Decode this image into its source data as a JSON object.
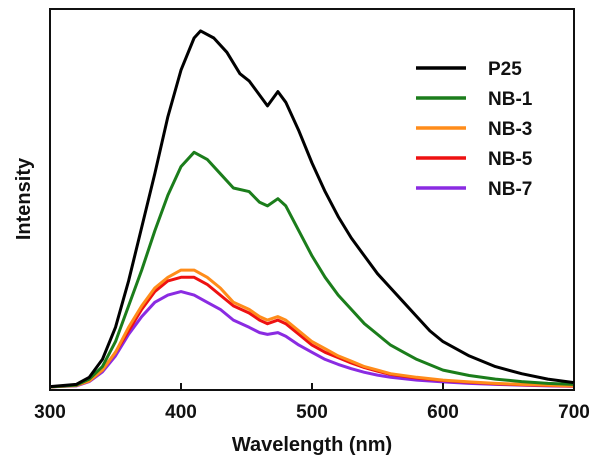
{
  "chart_data": {
    "type": "line",
    "title": "",
    "xlabel": "Wavelength (nm)",
    "ylabel": "Intensity",
    "xlim": [
      300,
      700
    ],
    "ylim": [
      0,
      1.05
    ],
    "xticks": [
      300,
      400,
      500,
      600,
      700
    ],
    "grid": false,
    "legend_position": "top-right",
    "series": [
      {
        "name": "P25",
        "color": "#000000",
        "points": [
          [
            300,
            0.004
          ],
          [
            320,
            0.01
          ],
          [
            330,
            0.03
          ],
          [
            340,
            0.08
          ],
          [
            350,
            0.17
          ],
          [
            360,
            0.3
          ],
          [
            370,
            0.45
          ],
          [
            380,
            0.6
          ],
          [
            390,
            0.76
          ],
          [
            400,
            0.89
          ],
          [
            410,
            0.98
          ],
          [
            415,
            1.0
          ],
          [
            425,
            0.98
          ],
          [
            435,
            0.94
          ],
          [
            445,
            0.88
          ],
          [
            452,
            0.86
          ],
          [
            460,
            0.82
          ],
          [
            466,
            0.79
          ],
          [
            474,
            0.83
          ],
          [
            480,
            0.8
          ],
          [
            490,
            0.72
          ],
          [
            500,
            0.63
          ],
          [
            510,
            0.55
          ],
          [
            520,
            0.48
          ],
          [
            530,
            0.42
          ],
          [
            540,
            0.37
          ],
          [
            550,
            0.32
          ],
          [
            560,
            0.28
          ],
          [
            570,
            0.24
          ],
          [
            580,
            0.2
          ],
          [
            590,
            0.16
          ],
          [
            600,
            0.13
          ],
          [
            620,
            0.09
          ],
          [
            640,
            0.06
          ],
          [
            660,
            0.04
          ],
          [
            680,
            0.025
          ],
          [
            700,
            0.015
          ]
        ]
      },
      {
        "name": "NB-1",
        "color": "#1b7d1b",
        "points": [
          [
            300,
            0.003
          ],
          [
            320,
            0.008
          ],
          [
            330,
            0.025
          ],
          [
            340,
            0.06
          ],
          [
            350,
            0.13
          ],
          [
            360,
            0.23
          ],
          [
            370,
            0.33
          ],
          [
            380,
            0.44
          ],
          [
            390,
            0.54
          ],
          [
            400,
            0.62
          ],
          [
            410,
            0.66
          ],
          [
            420,
            0.64
          ],
          [
            430,
            0.6
          ],
          [
            440,
            0.56
          ],
          [
            452,
            0.55
          ],
          [
            460,
            0.52
          ],
          [
            466,
            0.51
          ],
          [
            474,
            0.53
          ],
          [
            480,
            0.51
          ],
          [
            490,
            0.44
          ],
          [
            500,
            0.37
          ],
          [
            510,
            0.31
          ],
          [
            520,
            0.26
          ],
          [
            530,
            0.22
          ],
          [
            540,
            0.18
          ],
          [
            550,
            0.15
          ],
          [
            560,
            0.12
          ],
          [
            570,
            0.1
          ],
          [
            580,
            0.08
          ],
          [
            600,
            0.05
          ],
          [
            620,
            0.035
          ],
          [
            640,
            0.025
          ],
          [
            660,
            0.018
          ],
          [
            680,
            0.013
          ],
          [
            700,
            0.01
          ]
        ]
      },
      {
        "name": "NB-3",
        "color": "#ff8c1a",
        "points": [
          [
            300,
            0.003
          ],
          [
            320,
            0.007
          ],
          [
            330,
            0.02
          ],
          [
            340,
            0.05
          ],
          [
            350,
            0.1
          ],
          [
            360,
            0.17
          ],
          [
            370,
            0.23
          ],
          [
            380,
            0.28
          ],
          [
            390,
            0.31
          ],
          [
            400,
            0.33
          ],
          [
            410,
            0.33
          ],
          [
            420,
            0.31
          ],
          [
            430,
            0.28
          ],
          [
            440,
            0.24
          ],
          [
            452,
            0.22
          ],
          [
            460,
            0.2
          ],
          [
            466,
            0.19
          ],
          [
            474,
            0.2
          ],
          [
            480,
            0.19
          ],
          [
            490,
            0.16
          ],
          [
            500,
            0.13
          ],
          [
            510,
            0.11
          ],
          [
            520,
            0.09
          ],
          [
            530,
            0.075
          ],
          [
            540,
            0.06
          ],
          [
            550,
            0.05
          ],
          [
            560,
            0.04
          ],
          [
            580,
            0.03
          ],
          [
            600,
            0.022
          ],
          [
            620,
            0.017
          ],
          [
            640,
            0.013
          ],
          [
            660,
            0.01
          ],
          [
            680,
            0.008
          ],
          [
            700,
            0.006
          ]
        ]
      },
      {
        "name": "NB-5",
        "color": "#ee1111",
        "points": [
          [
            300,
            0.003
          ],
          [
            320,
            0.007
          ],
          [
            330,
            0.02
          ],
          [
            340,
            0.05
          ],
          [
            350,
            0.1
          ],
          [
            360,
            0.16
          ],
          [
            370,
            0.22
          ],
          [
            380,
            0.27
          ],
          [
            390,
            0.3
          ],
          [
            400,
            0.31
          ],
          [
            410,
            0.31
          ],
          [
            420,
            0.29
          ],
          [
            430,
            0.26
          ],
          [
            440,
            0.23
          ],
          [
            452,
            0.21
          ],
          [
            460,
            0.19
          ],
          [
            466,
            0.18
          ],
          [
            474,
            0.19
          ],
          [
            480,
            0.18
          ],
          [
            490,
            0.15
          ],
          [
            500,
            0.12
          ],
          [
            510,
            0.1
          ],
          [
            520,
            0.085
          ],
          [
            530,
            0.07
          ],
          [
            540,
            0.057
          ],
          [
            550,
            0.047
          ],
          [
            560,
            0.038
          ],
          [
            580,
            0.028
          ],
          [
            600,
            0.021
          ],
          [
            620,
            0.016
          ],
          [
            640,
            0.012
          ],
          [
            660,
            0.009
          ],
          [
            680,
            0.007
          ],
          [
            700,
            0.005
          ]
        ]
      },
      {
        "name": "NB-7",
        "color": "#8a2be2",
        "points": [
          [
            300,
            0.003
          ],
          [
            320,
            0.006
          ],
          [
            330,
            0.018
          ],
          [
            340,
            0.045
          ],
          [
            350,
            0.09
          ],
          [
            360,
            0.15
          ],
          [
            370,
            0.2
          ],
          [
            380,
            0.24
          ],
          [
            390,
            0.26
          ],
          [
            400,
            0.27
          ],
          [
            410,
            0.26
          ],
          [
            420,
            0.24
          ],
          [
            430,
            0.22
          ],
          [
            440,
            0.19
          ],
          [
            452,
            0.17
          ],
          [
            460,
            0.155
          ],
          [
            466,
            0.15
          ],
          [
            474,
            0.155
          ],
          [
            480,
            0.145
          ],
          [
            490,
            0.12
          ],
          [
            500,
            0.1
          ],
          [
            510,
            0.08
          ],
          [
            520,
            0.066
          ],
          [
            530,
            0.054
          ],
          [
            540,
            0.044
          ],
          [
            550,
            0.036
          ],
          [
            560,
            0.03
          ],
          [
            580,
            0.022
          ],
          [
            600,
            0.017
          ],
          [
            620,
            0.013
          ],
          [
            640,
            0.01
          ],
          [
            660,
            0.008
          ],
          [
            680,
            0.006
          ],
          [
            700,
            0.005
          ]
        ]
      }
    ]
  }
}
